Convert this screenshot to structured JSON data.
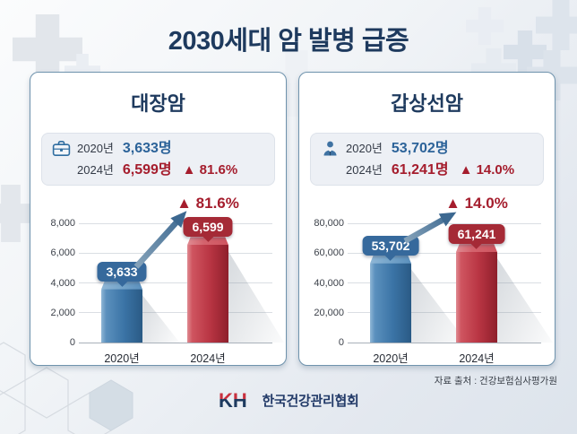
{
  "title": "2030세대 암 발병 급증",
  "source": "자료 출처 : 건강보험심사평가원",
  "footer_logo": {
    "mark": "KH",
    "org": "한국건강관리협회"
  },
  "colors": {
    "navy": "#1e3a5e",
    "red_text": "#a51d2d",
    "blue_text": "#2c6399",
    "arrow": "#4d7598",
    "bar_blue": {
      "edge": "#8fb6d6",
      "light": "#5b90bd",
      "base": "#3b74a6",
      "dark": "#2a5a85",
      "top": "#7aa8cc",
      "badge": "#36699c"
    },
    "bar_red": {
      "edge": "#e08b92",
      "light": "#cf5560",
      "base": "#b93543",
      "dark": "#8e1f2b",
      "top": "#d4636d",
      "badge": "#a52a36"
    }
  },
  "panels": [
    {
      "title": "대장암",
      "icon": "first-aid-kit-icon",
      "stats": [
        {
          "year": "2020년",
          "value": "3,633명",
          "change": ""
        },
        {
          "year": "2024년",
          "value": "6,599명",
          "change": "▲ 81.6%"
        }
      ]
    },
    {
      "title": "갑상선암",
      "icon": "doctor-icon",
      "stats": [
        {
          "year": "2020년",
          "value": "53,702명",
          "change": ""
        },
        {
          "year": "2024년",
          "value": "61,241명",
          "change": "▲ 14.0%"
        }
      ]
    }
  ],
  "chart_data": [
    {
      "type": "bar",
      "title": "대장암",
      "categories": [
        "2020년",
        "2024년"
      ],
      "values": [
        3633,
        6599
      ],
      "data_labels": [
        "3,633",
        "6,599"
      ],
      "annotation": "▲ 81.6%",
      "ylim": [
        0,
        8000
      ],
      "yticks": [
        "0",
        "2,000",
        "4,000",
        "6,000",
        "8,000"
      ],
      "bar_color_keys": [
        "bar_blue",
        "bar_red"
      ],
      "grid": true,
      "legend": false
    },
    {
      "type": "bar",
      "title": "갑상선암",
      "categories": [
        "2020년",
        "2024년"
      ],
      "values": [
        53702,
        61241
      ],
      "data_labels": [
        "53,702",
        "61,241"
      ],
      "annotation": "▲ 14.0%",
      "ylim": [
        0,
        80000
      ],
      "yticks": [
        "0",
        "20,000",
        "40,000",
        "60,000",
        "80,000"
      ],
      "bar_color_keys": [
        "bar_blue",
        "bar_red"
      ],
      "grid": true,
      "legend": false
    }
  ]
}
